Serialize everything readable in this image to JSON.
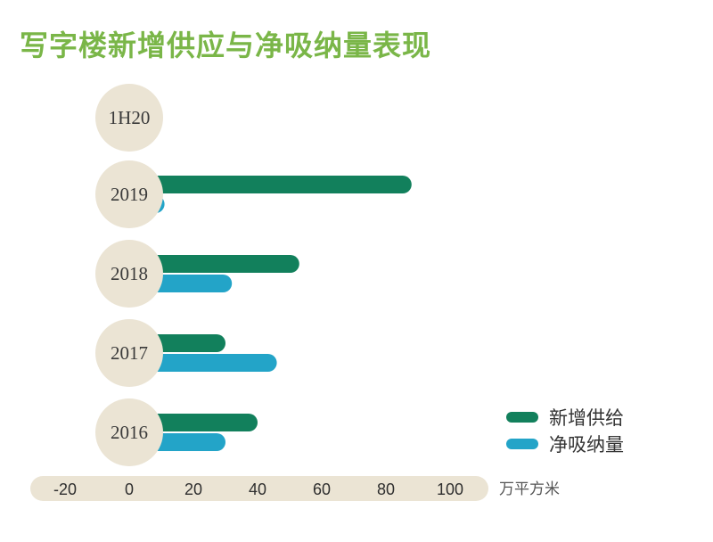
{
  "title": "写字楼新增供应与净吸纳量表现",
  "colors": {
    "title": "#7ab648",
    "supply": "#12805c",
    "absorption": "#23a4c8",
    "badge": "#ebe4d4",
    "axis_band": "#ebe4d4"
  },
  "chart_data": {
    "type": "bar",
    "orientation": "horizontal",
    "categories": [
      "1H20",
      "2019",
      "2018",
      "2017",
      "2016"
    ],
    "series": [
      {
        "name": "新增供给",
        "color": "#12805c",
        "values": [
          8,
          88,
          53,
          30,
          40
        ]
      },
      {
        "name": "净吸纳量",
        "color": "#23a4c8",
        "values": [
          -5,
          11,
          32,
          46,
          30
        ]
      }
    ],
    "xlim": [
      -20,
      110
    ],
    "x_ticks": [
      "-20",
      "0",
      "20",
      "40",
      "60",
      "80",
      "100"
    ],
    "x_tick_values": [
      -20,
      0,
      20,
      40,
      60,
      80,
      100
    ],
    "unit": "万平方米",
    "legend_position": "right",
    "grid": false
  }
}
